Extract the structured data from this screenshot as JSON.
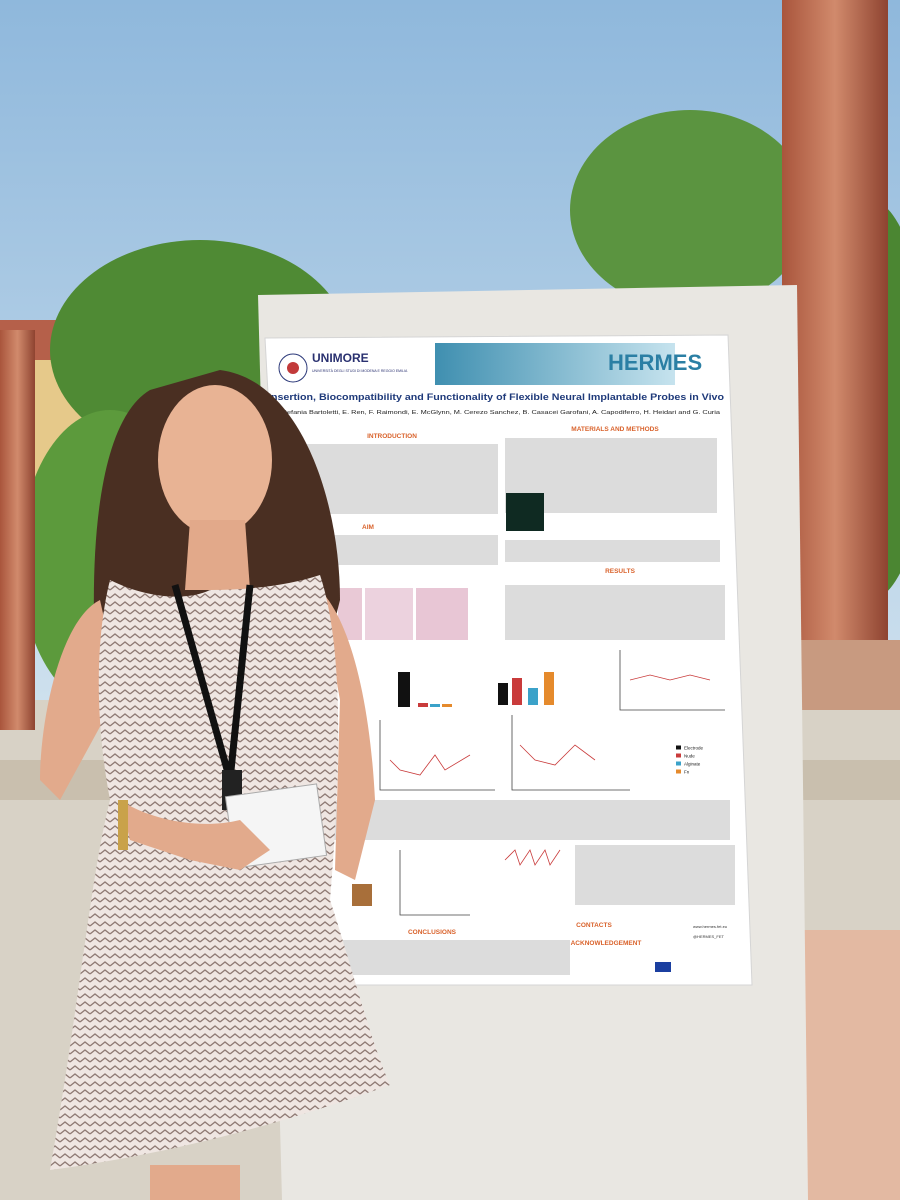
{
  "poster": {
    "logo_left": "UNIMORE",
    "logo_left_sub": "UNIVERSITÀ DEGLI STUDI DI MODENA E REGGIO EMILIA",
    "logo_right": "HERMES",
    "title": "Insertion, Biocompatibility and Functionality of Flexible Neural Implantable Probes in Vivo",
    "authors": "Stefania Bartoletti, E. Ren, F. Raimondi, E. McGlynn, M. Cerezo Sanchez, B. Casacei Garofani, A. Capodiferro, H. Heidari and G. Curia",
    "sections": {
      "introduction": "INTRODUCTION",
      "methods": "MATERIALS AND METHODS",
      "aim": "AIM",
      "results": "RESULTS",
      "conclusions": "CONCLUSIONS",
      "contacts": "CONTACTS",
      "acknowledgement": "ACKNOWLEDGEMENT"
    },
    "legend": [
      "Electrode",
      "Nude",
      "Alginate",
      "Fn"
    ],
    "website": "www.hermes.fet.eu",
    "twitter": "@HERMES_FET"
  }
}
